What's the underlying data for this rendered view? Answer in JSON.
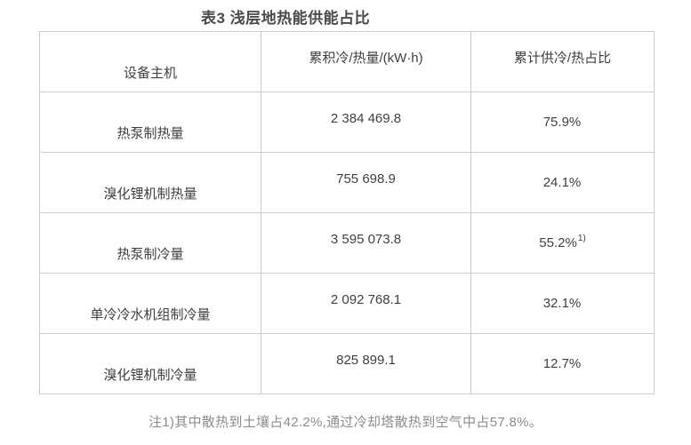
{
  "title": "表3 浅层地热能供能占比",
  "table": {
    "columns": [
      "设备主机",
      "累积冷/热量/(kW·h)",
      "累计供冷/热占比"
    ],
    "rows": [
      {
        "device": "热泵制热量",
        "energy": "2 384 469.8",
        "ratio": "75.9%",
        "ratio_sup": ""
      },
      {
        "device": "溴化锂机制热量",
        "energy": "755 698.9",
        "ratio": "24.1%",
        "ratio_sup": ""
      },
      {
        "device": "热泵制冷量",
        "energy": "3 595 073.8",
        "ratio": "55.2%",
        "ratio_sup": "1)"
      },
      {
        "device": "单冷冷水机组制冷量",
        "energy": "2 092 768.1",
        "ratio": "32.1%",
        "ratio_sup": ""
      },
      {
        "device": "溴化锂机制冷量",
        "energy": "825 899.1",
        "ratio": "12.7%",
        "ratio_sup": ""
      }
    ]
  },
  "footnote": "注1)其中散热到土壤占42.2%,通过冷却塔散热到空气中占57.8%。",
  "colors": {
    "text": "#404040",
    "title": "#4a4a4a",
    "border": "#cdcdcd",
    "footnote": "#8c8c8c",
    "background": "#ffffff"
  }
}
